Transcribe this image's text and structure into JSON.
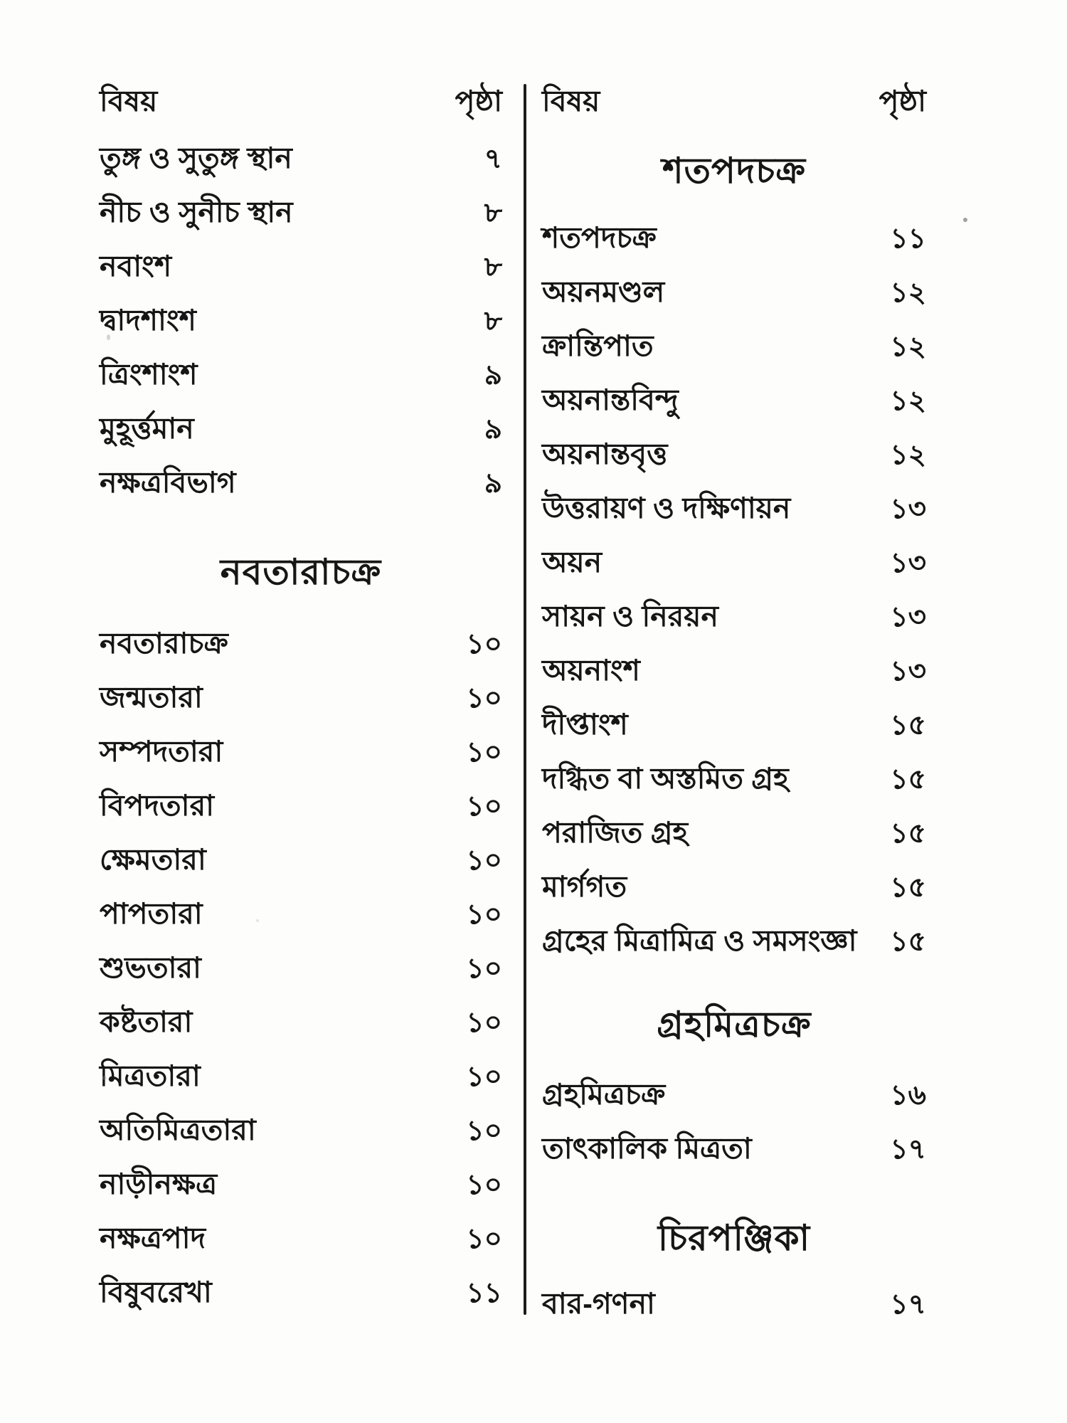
{
  "colors": {
    "background": "#fdfdfb",
    "text": "#161616",
    "divider": "#1c1c1c"
  },
  "columns": {
    "left": {
      "header": {
        "subject": "বিষয়",
        "page": "পৃষ্ঠা"
      },
      "sections": [
        {
          "heading": "",
          "entries": [
            {
              "label": "তুঙ্গ ও সুতুঙ্গ স্থান",
              "page": "৭"
            },
            {
              "label": "নীচ ও সুনীচ স্থান",
              "page": "৮"
            },
            {
              "label": "নবাংশ",
              "page": "৮"
            },
            {
              "label": "দ্বাদশাংশ",
              "page": "৮"
            },
            {
              "label": "ত্রিংশাংশ",
              "page": "৯"
            },
            {
              "label": "মুহূর্ত্তমান",
              "page": "৯"
            },
            {
              "label": "নক্ষত্রবিভাগ",
              "page": "৯"
            }
          ]
        },
        {
          "heading": "নবতারাচক্র",
          "entries": [
            {
              "label": "নবতারাচক্র",
              "page": "১০"
            },
            {
              "label": "জন্মতারা",
              "page": "১০"
            },
            {
              "label": "সম্পদতারা",
              "page": "১০"
            },
            {
              "label": "বিপদতারা",
              "page": "১০"
            },
            {
              "label": "ক্ষেমতারা",
              "page": "১০"
            },
            {
              "label": "পাপতারা",
              "page": "১০"
            },
            {
              "label": "শুভতারা",
              "page": "১০"
            },
            {
              "label": "কষ্টতারা",
              "page": "১০"
            },
            {
              "label": "মিত্রতারা",
              "page": "১০"
            },
            {
              "label": "অতিমিত্রতারা",
              "page": "১০"
            },
            {
              "label": "নাড়ীনক্ষত্র",
              "page": "১০"
            },
            {
              "label": "নক্ষত্রপাদ",
              "page": "১০"
            },
            {
              "label": "বিষুবরেখা",
              "page": "১১"
            }
          ]
        }
      ]
    },
    "right": {
      "header": {
        "subject": "বিষয়",
        "page": "পৃষ্ঠা"
      },
      "sections": [
        {
          "heading": "শতপদচক্র",
          "entries": [
            {
              "label": "শতপদচক্র",
              "page": "১১"
            },
            {
              "label": "অয়নমণ্ডল",
              "page": "১২"
            },
            {
              "label": "ক্রান্তিপাত",
              "page": "১২"
            },
            {
              "label": "অয়নান্তবিন্দু",
              "page": "১২"
            },
            {
              "label": "অয়নান্তবৃত্ত",
              "page": "১২"
            },
            {
              "label": "উত্তরায়ণ ও দক্ষিণায়ন",
              "page": "১৩"
            },
            {
              "label": "অয়ন",
              "page": "১৩"
            },
            {
              "label": "সায়ন ও নিরয়ন",
              "page": "১৩"
            },
            {
              "label": "অয়নাংশ",
              "page": "১৩"
            },
            {
              "label": "দীপ্তাংশ",
              "page": "১৫"
            },
            {
              "label": "দগ্ধিত বা অস্তমিত গ্রহ",
              "page": "১৫"
            },
            {
              "label": "পরাজিত গ্রহ",
              "page": "১৫"
            },
            {
              "label": "মার্গগত",
              "page": "১৫"
            },
            {
              "label": "গ্রহের মিত্রামিত্র ও সমসংজ্ঞা",
              "page": "১৫"
            }
          ]
        },
        {
          "heading": "গ্রহমিত্রচক্র",
          "entries": [
            {
              "label": "গ্রহমিত্রচক্র",
              "page": "১৬"
            },
            {
              "label": "তাৎকালিক মিত্রতা",
              "page": "১৭"
            }
          ]
        },
        {
          "heading": "চিরপঞ্জিকা",
          "entries": [
            {
              "label": "বার-গণনা",
              "page": "১৭"
            }
          ]
        }
      ]
    }
  }
}
